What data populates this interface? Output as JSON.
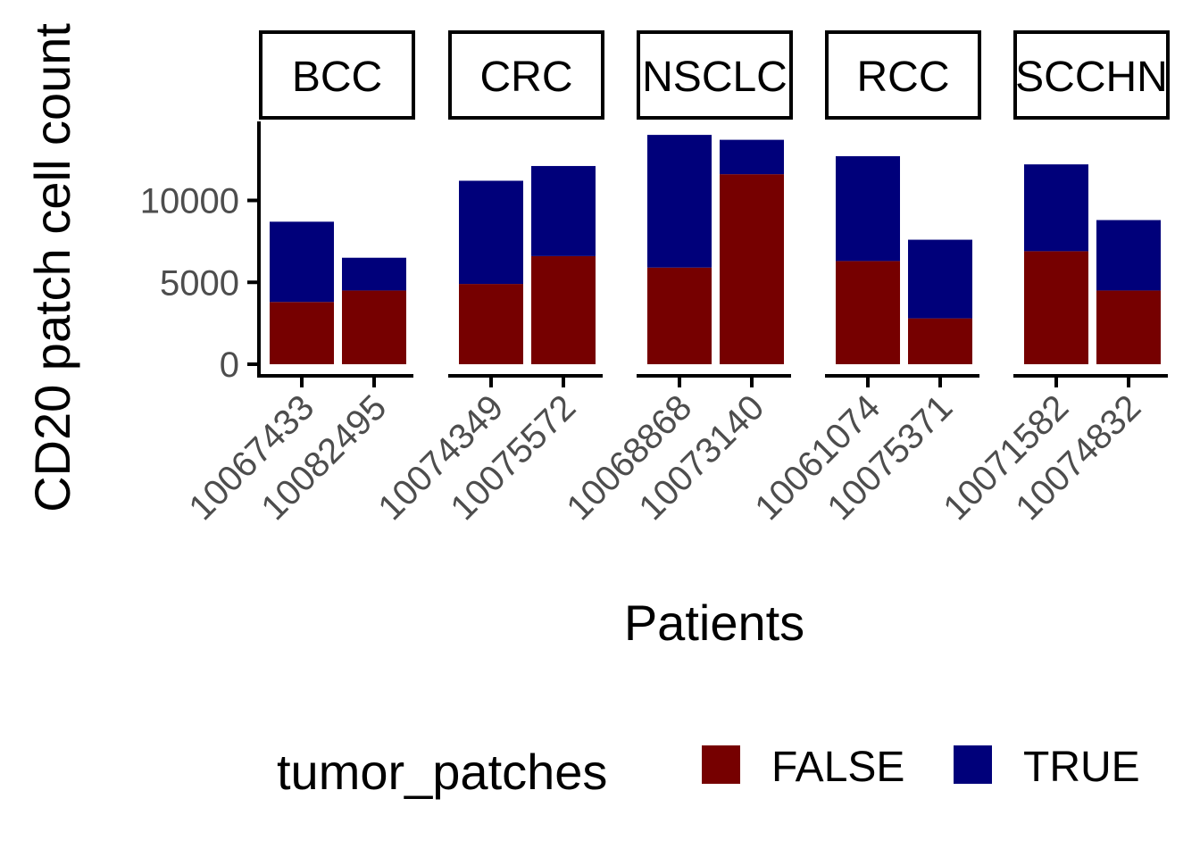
{
  "chart_data": {
    "type": "bar",
    "stacked": true,
    "xlabel": "Patients",
    "ylabel": "CD20 patch cell count",
    "ylim": [
      0,
      14500
    ],
    "yticks": [
      0,
      5000,
      10000
    ],
    "legend": {
      "title": "tumor_patches",
      "placement": "bottom",
      "entries": [
        {
          "name": "FALSE",
          "color": "#760000"
        },
        {
          "name": "TRUE",
          "color": "#00007A"
        }
      ]
    },
    "facets": [
      {
        "label": "BCC",
        "categories": [
          "10067433",
          "10082495"
        ],
        "series": [
          {
            "name": "FALSE",
            "values": [
              3800,
              4500
            ]
          },
          {
            "name": "TRUE",
            "values": [
              4900,
              2000
            ]
          }
        ]
      },
      {
        "label": "CRC",
        "categories": [
          "10074349",
          "10075572"
        ],
        "series": [
          {
            "name": "FALSE",
            "values": [
              4900,
              6600
            ]
          },
          {
            "name": "TRUE",
            "values": [
              6300,
              5500
            ]
          }
        ]
      },
      {
        "label": "NSCLC",
        "categories": [
          "10068868",
          "10073140"
        ],
        "series": [
          {
            "name": "FALSE",
            "values": [
              5900,
              11600
            ]
          },
          {
            "name": "TRUE",
            "values": [
              8100,
              2100
            ]
          }
        ]
      },
      {
        "label": "RCC",
        "categories": [
          "10061074",
          "10075371"
        ],
        "series": [
          {
            "name": "FALSE",
            "values": [
              6300,
              2800
            ]
          },
          {
            "name": "TRUE",
            "values": [
              6400,
              4800
            ]
          }
        ]
      },
      {
        "label": "SCCHN",
        "categories": [
          "10071582",
          "10074832"
        ],
        "series": [
          {
            "name": "FALSE",
            "values": [
              6900,
              4500
            ]
          },
          {
            "name": "TRUE",
            "values": [
              5300,
              4300
            ]
          }
        ]
      }
    ]
  }
}
